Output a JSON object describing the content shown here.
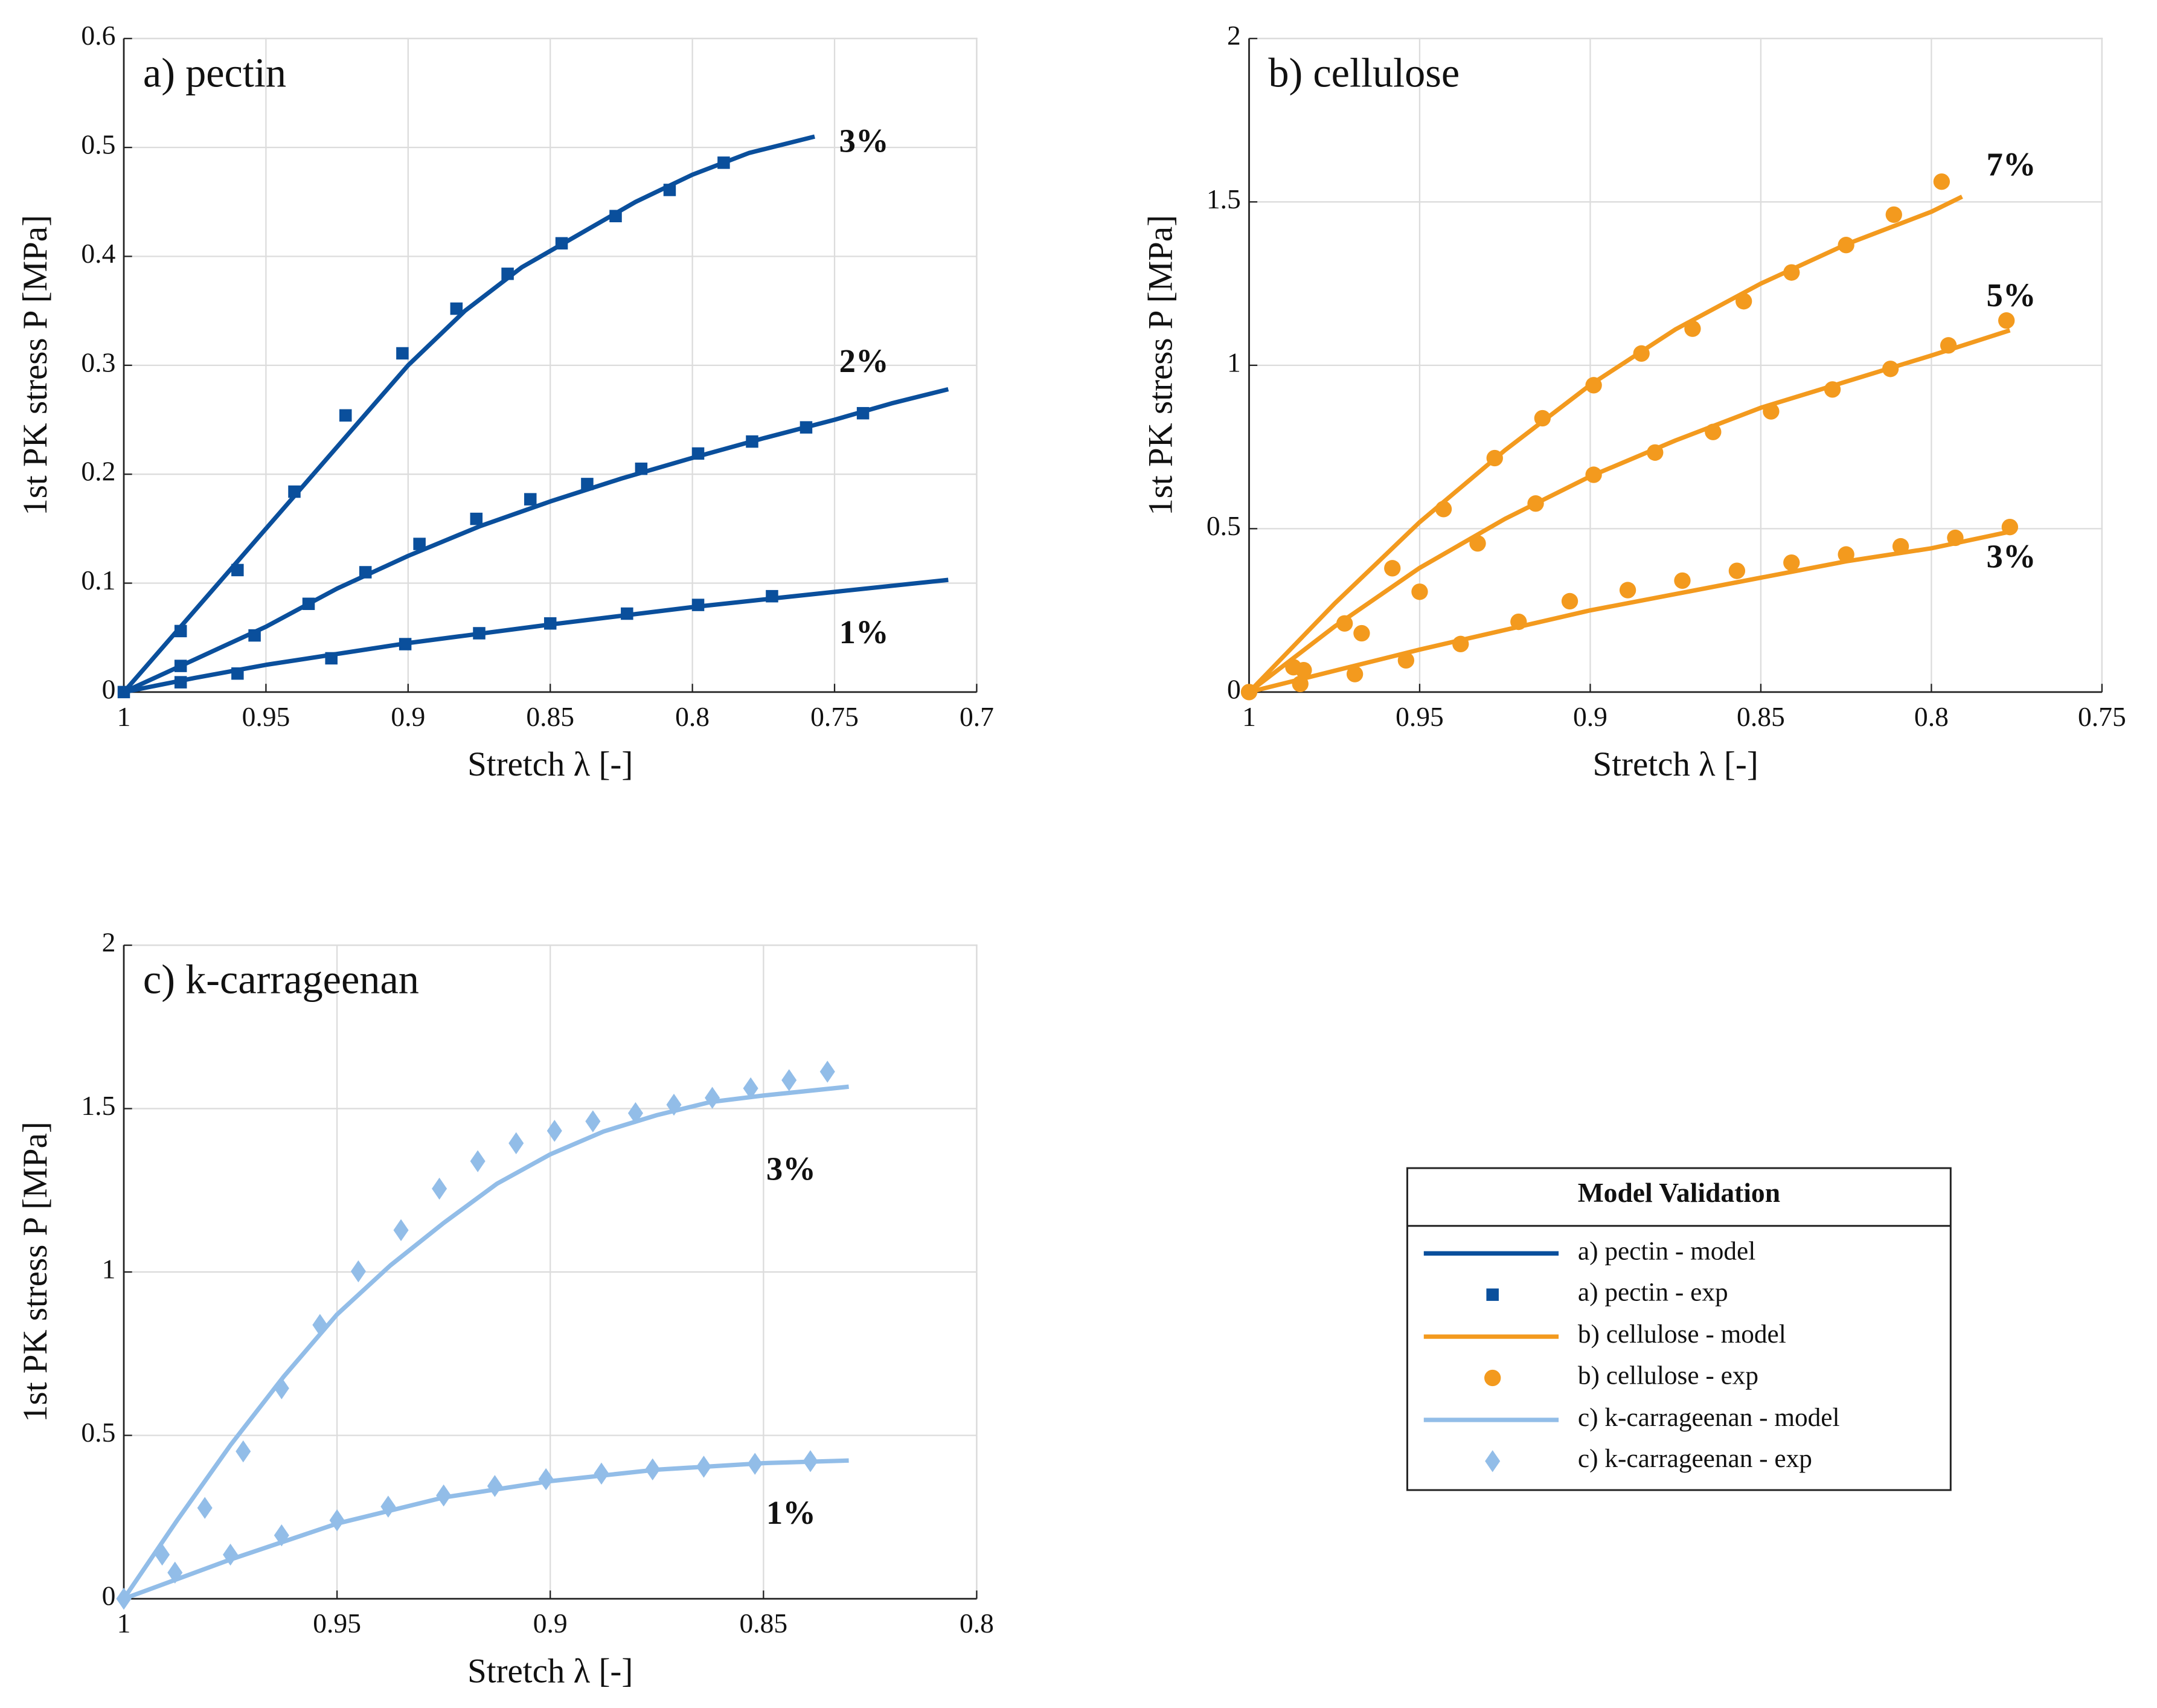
{
  "chart_data": [
    {
      "type": "line",
      "title": "a) pectin",
      "xlabel": "Stretch λ [-]",
      "ylabel": "1st PK stress P [MPa]",
      "xlim": [
        1,
        0.7
      ],
      "xticks": [
        1,
        0.95,
        0.9,
        0.85,
        0.8,
        0.75,
        0.7
      ],
      "ylim": [
        0,
        0.6
      ],
      "yticks": [
        0,
        0.1,
        0.2,
        0.3,
        0.4,
        0.5,
        0.6
      ],
      "grid": true,
      "color": "#0a4f9c",
      "marker": "square",
      "model_label": "a) pectin - model",
      "exp_label": "a) pectin - exp",
      "series": [
        {
          "name": "3%",
          "model": {
            "x": [
              1,
              0.97,
              0.94,
              0.92,
              0.9,
              0.88,
              0.86,
              0.84,
              0.82,
              0.8,
              0.78,
              0.757
            ],
            "values": [
              0,
              0.09,
              0.18,
              0.24,
              0.3,
              0.35,
              0.39,
              0.42,
              0.45,
              0.475,
              0.495,
              0.51
            ]
          },
          "exp": {
            "x": [
              1,
              0.98,
              0.96,
              0.94,
              0.922,
              0.902,
              0.883,
              0.865,
              0.846,
              0.827,
              0.808,
              0.789
            ],
            "values": [
              0,
              0.056,
              0.112,
              0.184,
              0.254,
              0.311,
              0.352,
              0.384,
              0.412,
              0.437,
              0.461,
              0.486
            ]
          }
        },
        {
          "name": "2%",
          "model": {
            "x": [
              1,
              0.975,
              0.95,
              0.925,
              0.9,
              0.875,
              0.85,
              0.825,
              0.8,
              0.775,
              0.75,
              0.73,
              0.71
            ],
            "values": [
              0,
              0.03,
              0.06,
              0.095,
              0.125,
              0.152,
              0.175,
              0.196,
              0.215,
              0.233,
              0.25,
              0.265,
              0.278
            ]
          },
          "exp": {
            "x": [
              0.98,
              0.954,
              0.935,
              0.915,
              0.896,
              0.876,
              0.857,
              0.837,
              0.818,
              0.798,
              0.779,
              0.76,
              0.74
            ],
            "values": [
              0.024,
              0.052,
              0.081,
              0.11,
              0.136,
              0.159,
              0.177,
              0.191,
              0.205,
              0.219,
              0.23,
              0.243,
              0.256
            ]
          }
        },
        {
          "name": "1%",
          "model": {
            "x": [
              1,
              0.975,
              0.95,
              0.9,
              0.85,
              0.8,
              0.75,
              0.71
            ],
            "values": [
              0,
              0.013,
              0.025,
              0.045,
              0.062,
              0.078,
              0.092,
              0.103
            ]
          },
          "exp": {
            "x": [
              0.98,
              0.96,
              0.927,
              0.901,
              0.875,
              0.85,
              0.823,
              0.798,
              0.772
            ],
            "values": [
              0.009,
              0.017,
              0.031,
              0.044,
              0.054,
              0.063,
              0.072,
              0.08,
              0.088
            ]
          }
        }
      ]
    },
    {
      "type": "line",
      "title": "b) cellulose",
      "xlabel": "Stretch λ [-]",
      "ylabel": "1st PK stress P [MPa]",
      "xlim": [
        1,
        0.75
      ],
      "xticks": [
        1,
        0.95,
        0.9,
        0.85,
        0.8,
        0.75
      ],
      "ylim": [
        0,
        2
      ],
      "yticks": [
        0,
        0.5,
        1,
        1.5,
        2
      ],
      "grid": true,
      "color": "#f39a1e",
      "marker": "circle",
      "model_label": "b) cellulose - model",
      "exp_label": "b) cellulose - exp",
      "series": [
        {
          "name": "7%",
          "model": {
            "x": [
              1,
              0.975,
              0.95,
              0.925,
              0.9,
              0.875,
              0.85,
              0.825,
              0.8,
              0.791
            ],
            "values": [
              0,
              0.27,
              0.52,
              0.74,
              0.94,
              1.11,
              1.25,
              1.37,
              1.47,
              1.516
            ]
          },
          "exp": {
            "x": [
              1,
              0.987,
              0.972,
              0.958,
              0.943,
              0.928,
              0.914,
              0.899,
              0.885,
              0.87,
              0.855,
              0.841,
              0.825,
              0.811,
              0.797
            ],
            "values": [
              0,
              0.076,
              0.21,
              0.379,
              0.56,
              0.716,
              0.838,
              0.939,
              1.036,
              1.112,
              1.196,
              1.284,
              1.368,
              1.461,
              1.562
            ]
          }
        },
        {
          "name": "5%",
          "model": {
            "x": [
              1,
              0.975,
              0.95,
              0.925,
              0.9,
              0.875,
              0.85,
              0.825,
              0.8,
              0.777
            ],
            "values": [
              0,
              0.2,
              0.38,
              0.53,
              0.66,
              0.77,
              0.87,
              0.95,
              1.03,
              1.107
            ]
          },
          "exp": {
            "x": [
              0.984,
              0.967,
              0.95,
              0.933,
              0.916,
              0.899,
              0.881,
              0.864,
              0.847,
              0.829,
              0.812,
              0.795,
              0.778
            ],
            "values": [
              0.067,
              0.18,
              0.307,
              0.455,
              0.577,
              0.665,
              0.733,
              0.796,
              0.859,
              0.926,
              0.989,
              1.061,
              1.137
            ]
          }
        },
        {
          "name": "3%",
          "model": {
            "x": [
              1,
              0.975,
              0.95,
              0.925,
              0.9,
              0.875,
              0.85,
              0.825,
              0.8,
              0.776
            ],
            "values": [
              0,
              0.065,
              0.13,
              0.19,
              0.25,
              0.3,
              0.35,
              0.4,
              0.44,
              0.493
            ]
          },
          "exp": {
            "x": [
              0.985,
              0.969,
              0.954,
              0.938,
              0.921,
              0.906,
              0.889,
              0.873,
              0.857,
              0.841,
              0.825,
              0.809,
              0.793,
              0.777
            ],
            "values": [
              0.025,
              0.055,
              0.097,
              0.147,
              0.215,
              0.278,
              0.312,
              0.341,
              0.371,
              0.396,
              0.421,
              0.446,
              0.472,
              0.505
            ]
          }
        }
      ]
    },
    {
      "type": "line",
      "title": "c) k-carrageenan",
      "xlabel": "Stretch λ [-]",
      "ylabel": "1st PK stress P [MPa]",
      "xlim": [
        1,
        0.8
      ],
      "xticks": [
        1,
        0.95,
        0.9,
        0.85,
        0.8
      ],
      "ylim": [
        0,
        2
      ],
      "yticks": [
        0,
        0.5,
        1,
        1.5,
        2
      ],
      "grid": true,
      "color": "#92bde8",
      "marker": "diamond",
      "model_label": "c) k-carrageenan - model",
      "exp_label": "c) k-carrageenan - exp",
      "series": [
        {
          "name": "3%",
          "model": {
            "x": [
              1,
              0.9875,
              0.975,
              0.9625,
              0.95,
              0.9375,
              0.925,
              0.9125,
              0.9,
              0.8875,
              0.875,
              0.8625,
              0.85,
              0.83
            ],
            "values": [
              0,
              0.24,
              0.47,
              0.68,
              0.87,
              1.02,
              1.15,
              1.27,
              1.36,
              1.43,
              1.48,
              1.52,
              1.54,
              1.567
            ]
          },
          "exp": {
            "x": [
              1,
              0.991,
              0.981,
              0.972,
              0.963,
              0.954,
              0.945,
              0.935,
              0.926,
              0.917,
              0.908,
              0.899,
              0.89,
              0.88,
              0.871,
              0.862,
              0.853,
              0.844,
              0.835
            ],
            "values": [
              0,
              0.135,
              0.278,
              0.451,
              0.644,
              0.838,
              1.002,
              1.128,
              1.255,
              1.339,
              1.394,
              1.432,
              1.461,
              1.486,
              1.512,
              1.533,
              1.562,
              1.587,
              1.613
            ]
          }
        },
        {
          "name": "1%",
          "model": {
            "x": [
              1,
              0.975,
              0.95,
              0.925,
              0.9,
              0.875,
              0.85,
              0.83
            ],
            "values": [
              0,
              0.12,
              0.23,
              0.31,
              0.36,
              0.395,
              0.415,
              0.423
            ]
          },
          "exp": {
            "x": [
              0.988,
              0.975,
              0.963,
              0.95,
              0.938,
              0.925,
              0.913,
              0.901,
              0.888,
              0.876,
              0.864,
              0.852,
              0.839
            ],
            "values": [
              0.08,
              0.135,
              0.194,
              0.24,
              0.282,
              0.316,
              0.345,
              0.366,
              0.383,
              0.396,
              0.404,
              0.413,
              0.421
            ]
          }
        }
      ]
    }
  ],
  "legend": {
    "title": "Model Validation"
  }
}
